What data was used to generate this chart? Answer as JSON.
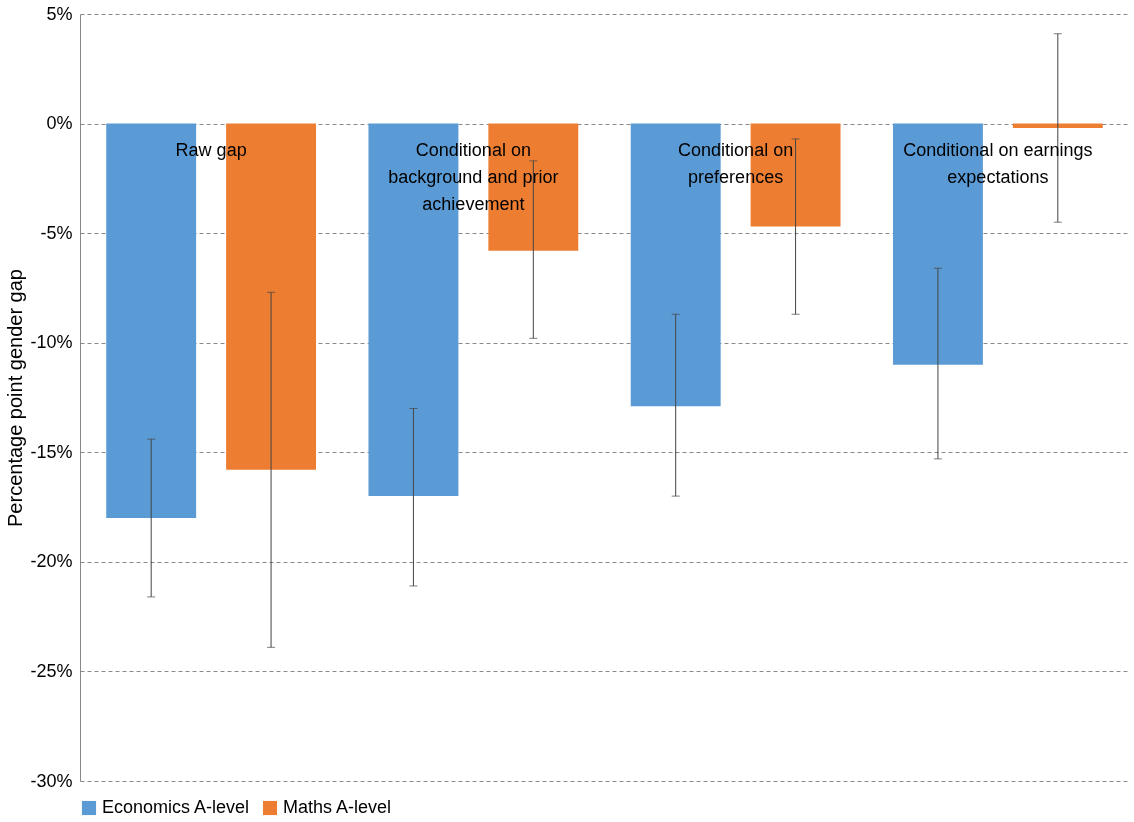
{
  "chart_data": {
    "type": "bar",
    "ylabel": "Percentage point gender gap",
    "categories": [
      "Raw gap",
      "Conditional on background and prior achievement",
      "Conditional on preferences",
      "Conditional on earnings expectations"
    ],
    "series": [
      {
        "name": "Economics A-level",
        "color": "#5b9bd5",
        "values": [
          -18.0,
          -17.0,
          -12.9,
          -11.0
        ],
        "errors": [
          [
            -21.6,
            -14.4
          ],
          [
            -21.1,
            -13.0
          ],
          [
            -17.0,
            -8.7
          ],
          [
            -15.3,
            -6.6
          ]
        ]
      },
      {
        "name": "Maths A-level",
        "color": "#ed7d31",
        "values": [
          -15.8,
          -5.8,
          -4.7,
          -0.2
        ],
        "errors": [
          [
            -23.9,
            -7.7
          ],
          [
            -9.8,
            -1.7
          ],
          [
            -8.7,
            -0.7
          ],
          [
            -4.5,
            4.1
          ]
        ]
      }
    ],
    "ylim": [
      -30,
      5
    ],
    "yticks": [
      {
        "value": 5,
        "label": "5%"
      },
      {
        "value": 0,
        "label": "0%"
      },
      {
        "value": -5,
        "label": "-5%"
      },
      {
        "value": -10,
        "label": "-10%"
      },
      {
        "value": -15,
        "label": "-15%"
      },
      {
        "value": -20,
        "label": "-20%"
      },
      {
        "value": -25,
        "label": "-25%"
      },
      {
        "value": -30,
        "label": "-30%"
      }
    ],
    "grid": "y",
    "legend": "bottom",
    "tick_labels": "y"
  }
}
